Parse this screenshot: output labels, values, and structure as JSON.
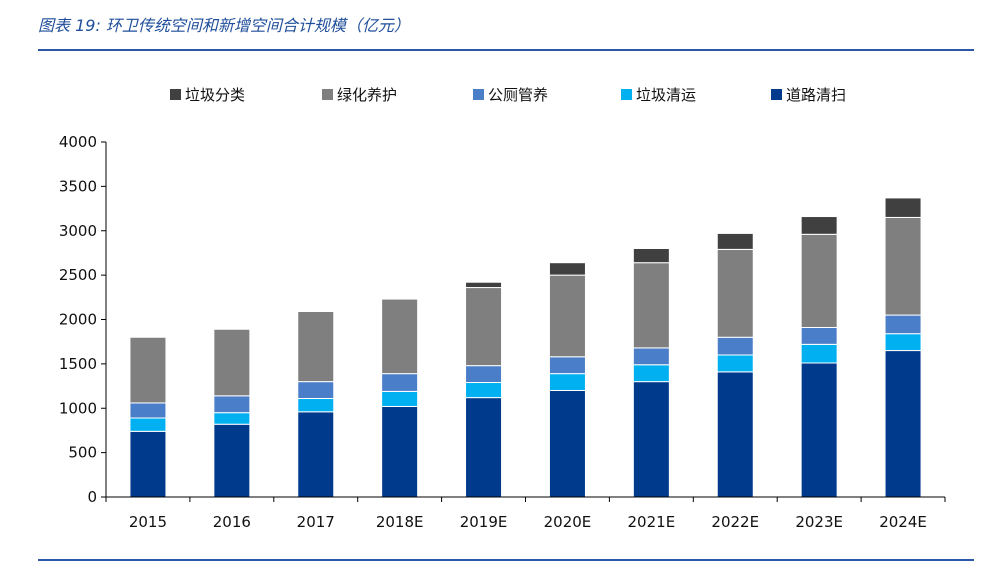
{
  "figure": {
    "title": "图表 19:  环卫传统空间和新增空间合计规模（亿元）"
  },
  "chart_data": {
    "type": "bar",
    "stacked": true,
    "title": "环卫传统空间和新增空间合计规模（亿元）",
    "xlabel": "",
    "ylabel": "",
    "ylim": [
      0,
      4000
    ],
    "yticks": [
      0,
      500,
      1000,
      1500,
      2000,
      2500,
      3000,
      3500,
      4000
    ],
    "categories": [
      "2015",
      "2016",
      "2017",
      "2018E",
      "2019E",
      "2020E",
      "2021E",
      "2022E",
      "2023E",
      "2024E"
    ],
    "legend_position": "top",
    "series": [
      {
        "name": "道路清扫",
        "color": "#003a8c",
        "values": [
          740,
          820,
          960,
          1020,
          1120,
          1200,
          1300,
          1410,
          1510,
          1650
        ]
      },
      {
        "name": "垃圾清运",
        "color": "#00b0f0",
        "values": [
          150,
          130,
          150,
          170,
          170,
          190,
          190,
          190,
          210,
          190
        ]
      },
      {
        "name": "公厕管养",
        "color": "#4a7ec8",
        "values": [
          170,
          190,
          190,
          200,
          190,
          190,
          190,
          200,
          190,
          210
        ]
      },
      {
        "name": "绿化养护",
        "color": "#7f7f7f",
        "values": [
          740,
          750,
          790,
          840,
          880,
          920,
          960,
          990,
          1050,
          1100
        ]
      },
      {
        "name": "垃圾分类",
        "color": "#404040",
        "values": [
          0,
          0,
          0,
          0,
          60,
          140,
          160,
          180,
          200,
          220
        ]
      }
    ]
  }
}
